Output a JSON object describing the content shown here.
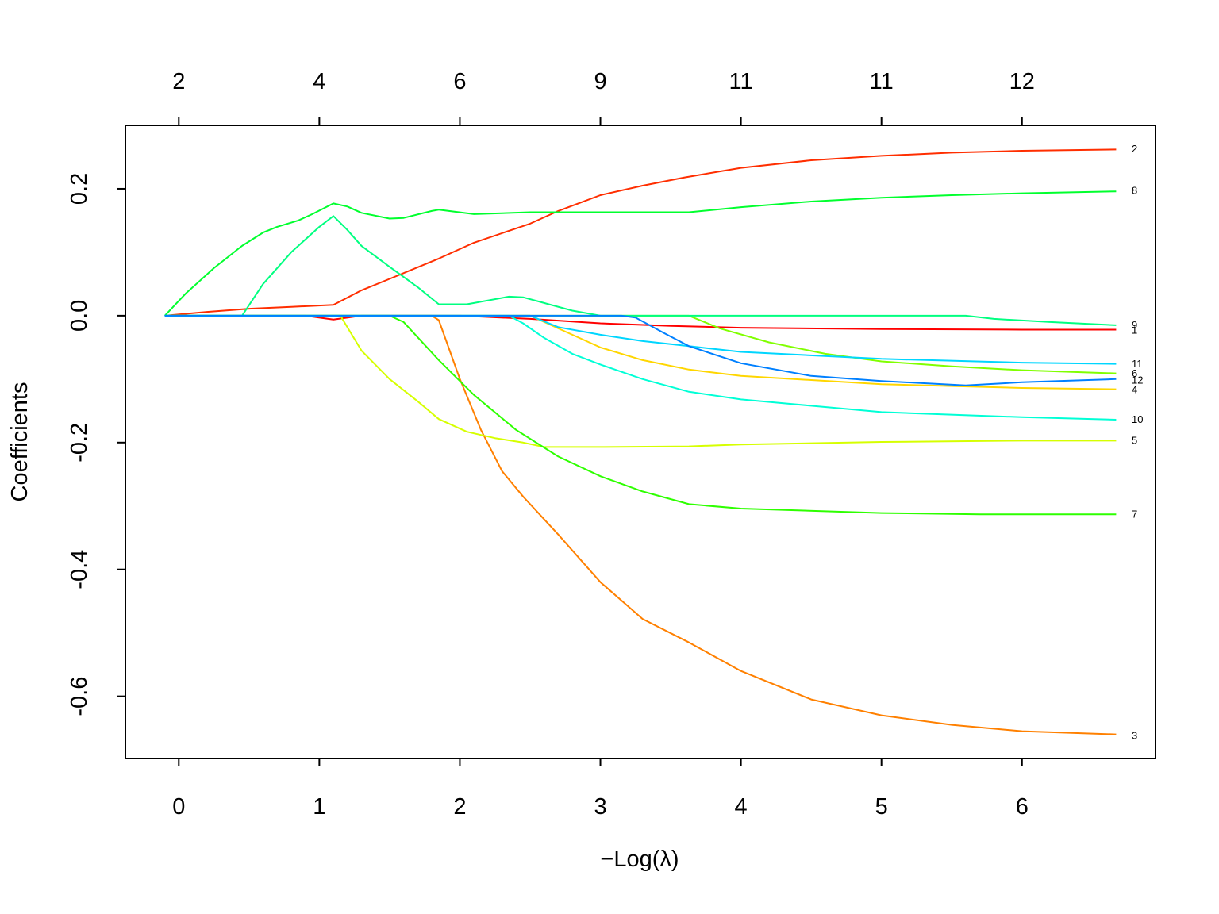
{
  "chart_data": {
    "type": "line",
    "title": "",
    "xlabel": "−Log(λ)",
    "ylabel": "Coefficients",
    "xlim": [
      -0.38,
      6.95
    ],
    "ylim": [
      -0.698,
      0.3
    ],
    "x_ticks": [
      0,
      1,
      2,
      3,
      4,
      5,
      6
    ],
    "y_ticks": [
      -0.6,
      -0.4,
      -0.2,
      0.0,
      0.2
    ],
    "y_tick_labels": [
      "-0.6",
      "-0.4",
      "-0.2",
      "0.0",
      "0.2"
    ],
    "top_axis": {
      "positions": [
        0,
        1,
        2,
        3,
        4,
        5,
        6
      ],
      "labels": [
        "2",
        "4",
        "6",
        "9",
        "11",
        "11",
        "12"
      ]
    },
    "grid": false,
    "series": [
      {
        "name": "1",
        "color": "#ff0000",
        "points": [
          [
            -0.1,
            0
          ],
          [
            0.9,
            0
          ],
          [
            1.1,
            -0.006
          ],
          [
            1.3,
            0
          ],
          [
            2.0,
            0
          ],
          [
            2.5,
            -0.005
          ],
          [
            3.0,
            -0.012
          ],
          [
            3.5,
            -0.016
          ],
          [
            4.0,
            -0.019
          ],
          [
            5.0,
            -0.021
          ],
          [
            6.0,
            -0.022
          ],
          [
            6.67,
            -0.022
          ]
        ]
      },
      {
        "name": "2",
        "color": "#ff2e00",
        "points": [
          [
            -0.1,
            0
          ],
          [
            0.2,
            0.006
          ],
          [
            0.5,
            0.011
          ],
          [
            0.8,
            0.014
          ],
          [
            1.1,
            0.017
          ],
          [
            1.3,
            0.04
          ],
          [
            1.5,
            0.058
          ],
          [
            1.85,
            0.09
          ],
          [
            2.1,
            0.115
          ],
          [
            2.5,
            0.145
          ],
          [
            2.7,
            0.165
          ],
          [
            3.0,
            0.19
          ],
          [
            3.3,
            0.205
          ],
          [
            3.6,
            0.218
          ],
          [
            4.0,
            0.233
          ],
          [
            4.5,
            0.245
          ],
          [
            5.0,
            0.252
          ],
          [
            5.5,
            0.257
          ],
          [
            6.0,
            0.26
          ],
          [
            6.67,
            0.262
          ]
        ]
      },
      {
        "name": "3",
        "color": "#ff8000",
        "points": [
          [
            -0.1,
            0
          ],
          [
            1.8,
            0
          ],
          [
            1.85,
            -0.007
          ],
          [
            2.0,
            -0.1
          ],
          [
            2.15,
            -0.18
          ],
          [
            2.3,
            -0.245
          ],
          [
            2.45,
            -0.285
          ],
          [
            2.7,
            -0.345
          ],
          [
            3.0,
            -0.42
          ],
          [
            3.3,
            -0.478
          ],
          [
            3.63,
            -0.515
          ],
          [
            4.0,
            -0.56
          ],
          [
            4.5,
            -0.605
          ],
          [
            5.0,
            -0.63
          ],
          [
            5.5,
            -0.645
          ],
          [
            6.0,
            -0.655
          ],
          [
            6.67,
            -0.66
          ]
        ]
      },
      {
        "name": "4",
        "color": "#ffd600",
        "points": [
          [
            -0.1,
            0
          ],
          [
            2.5,
            0
          ],
          [
            2.6,
            -0.01
          ],
          [
            3.0,
            -0.05
          ],
          [
            3.3,
            -0.07
          ],
          [
            3.63,
            -0.085
          ],
          [
            4.0,
            -0.095
          ],
          [
            5.0,
            -0.108
          ],
          [
            6.0,
            -0.114
          ],
          [
            6.67,
            -0.116
          ]
        ]
      },
      {
        "name": "5",
        "color": "#d6ff00",
        "points": [
          [
            -0.1,
            0
          ],
          [
            1.15,
            0
          ],
          [
            1.3,
            -0.055
          ],
          [
            1.5,
            -0.1
          ],
          [
            1.7,
            -0.135
          ],
          [
            1.85,
            -0.163
          ],
          [
            2.05,
            -0.183
          ],
          [
            2.25,
            -0.193
          ],
          [
            2.45,
            -0.2
          ],
          [
            2.6,
            -0.207
          ],
          [
            3.0,
            -0.207
          ],
          [
            3.63,
            -0.206
          ],
          [
            4.0,
            -0.203
          ],
          [
            5.0,
            -0.199
          ],
          [
            6.0,
            -0.197
          ],
          [
            6.67,
            -0.197
          ]
        ]
      },
      {
        "name": "6",
        "color": "#80ff00",
        "points": [
          [
            -0.1,
            0
          ],
          [
            3.63,
            0
          ],
          [
            3.85,
            -0.02
          ],
          [
            4.2,
            -0.042
          ],
          [
            4.6,
            -0.06
          ],
          [
            5.0,
            -0.072
          ],
          [
            5.5,
            -0.08
          ],
          [
            6.0,
            -0.086
          ],
          [
            6.67,
            -0.091
          ]
        ]
      },
      {
        "name": "7",
        "color": "#2eff00",
        "points": [
          [
            -0.1,
            0
          ],
          [
            1.5,
            0
          ],
          [
            1.6,
            -0.01
          ],
          [
            1.85,
            -0.07
          ],
          [
            2.1,
            -0.125
          ],
          [
            2.4,
            -0.18
          ],
          [
            2.7,
            -0.222
          ],
          [
            3.0,
            -0.253
          ],
          [
            3.3,
            -0.277
          ],
          [
            3.63,
            -0.297
          ],
          [
            4.0,
            -0.304
          ],
          [
            5.0,
            -0.311
          ],
          [
            5.7,
            -0.313
          ],
          [
            6.67,
            -0.313
          ]
        ]
      },
      {
        "name": "8",
        "color": "#00ff2e",
        "points": [
          [
            -0.1,
            0
          ],
          [
            0.05,
            0.035
          ],
          [
            0.25,
            0.075
          ],
          [
            0.45,
            0.11
          ],
          [
            0.6,
            0.131
          ],
          [
            0.7,
            0.14
          ],
          [
            0.85,
            0.15
          ],
          [
            0.95,
            0.16
          ],
          [
            1.1,
            0.177
          ],
          [
            1.2,
            0.172
          ],
          [
            1.3,
            0.162
          ],
          [
            1.5,
            0.153
          ],
          [
            1.6,
            0.154
          ],
          [
            1.8,
            0.165
          ],
          [
            1.85,
            0.167
          ],
          [
            2.1,
            0.16
          ],
          [
            2.5,
            0.163
          ],
          [
            3.0,
            0.163
          ],
          [
            3.63,
            0.163
          ],
          [
            4.0,
            0.171
          ],
          [
            4.5,
            0.18
          ],
          [
            5.0,
            0.186
          ],
          [
            5.5,
            0.19
          ],
          [
            6.0,
            0.193
          ],
          [
            6.67,
            0.196
          ]
        ]
      },
      {
        "name": "9",
        "color": "#00ff80",
        "points": [
          [
            -0.1,
            0
          ],
          [
            0.45,
            0
          ],
          [
            0.6,
            0.05
          ],
          [
            0.8,
            0.1
          ],
          [
            1.0,
            0.14
          ],
          [
            1.1,
            0.157
          ],
          [
            1.2,
            0.135
          ],
          [
            1.3,
            0.11
          ],
          [
            1.5,
            0.077
          ],
          [
            1.7,
            0.045
          ],
          [
            1.85,
            0.018
          ],
          [
            2.05,
            0.018
          ],
          [
            2.35,
            0.03
          ],
          [
            2.45,
            0.029
          ],
          [
            2.6,
            0.02
          ],
          [
            2.8,
            0.008
          ],
          [
            3.0,
            0
          ],
          [
            4.0,
            0
          ],
          [
            5.0,
            0
          ],
          [
            5.6,
            0
          ],
          [
            5.8,
            -0.005
          ],
          [
            6.2,
            -0.01
          ],
          [
            6.67,
            -0.015
          ]
        ]
      },
      {
        "name": "10",
        "color": "#00ffd6",
        "points": [
          [
            -0.1,
            0
          ],
          [
            2.35,
            0
          ],
          [
            2.45,
            -0.012
          ],
          [
            2.6,
            -0.035
          ],
          [
            2.8,
            -0.06
          ],
          [
            3.0,
            -0.077
          ],
          [
            3.3,
            -0.1
          ],
          [
            3.63,
            -0.12
          ],
          [
            4.0,
            -0.132
          ],
          [
            5.0,
            -0.152
          ],
          [
            6.0,
            -0.16
          ],
          [
            6.67,
            -0.164
          ]
        ]
      },
      {
        "name": "11",
        "color": "#00d6ff",
        "points": [
          [
            -0.1,
            0
          ],
          [
            2.5,
            0
          ],
          [
            2.7,
            -0.018
          ],
          [
            3.0,
            -0.03
          ],
          [
            3.3,
            -0.04
          ],
          [
            3.63,
            -0.048
          ],
          [
            4.0,
            -0.057
          ],
          [
            5.0,
            -0.068
          ],
          [
            6.0,
            -0.074
          ],
          [
            6.67,
            -0.076
          ]
        ]
      },
      {
        "name": "12",
        "color": "#0080ff",
        "points": [
          [
            -0.1,
            0
          ],
          [
            3.15,
            0
          ],
          [
            3.25,
            -0.003
          ],
          [
            3.45,
            -0.027
          ],
          [
            3.63,
            -0.048
          ],
          [
            4.0,
            -0.075
          ],
          [
            4.5,
            -0.095
          ],
          [
            5.0,
            -0.103
          ],
          [
            5.6,
            -0.11
          ],
          [
            6.0,
            -0.105
          ],
          [
            6.67,
            -0.1
          ]
        ]
      }
    ],
    "end_labels": [
      {
        "text": "2",
        "y": 0.264
      },
      {
        "text": "8",
        "y": 0.198
      },
      {
        "text": "9",
        "y": -0.014
      },
      {
        "text": "1",
        "y": -0.022
      },
      {
        "text": "11",
        "y": -0.075
      },
      {
        "text": "6",
        "y": -0.09
      },
      {
        "text": "12",
        "y": -0.101
      },
      {
        "text": "4",
        "y": -0.116
      },
      {
        "text": "10",
        "y": -0.163
      },
      {
        "text": "5",
        "y": -0.196
      },
      {
        "text": "7",
        "y": -0.312
      },
      {
        "text": "3",
        "y": -0.661
      }
    ]
  }
}
